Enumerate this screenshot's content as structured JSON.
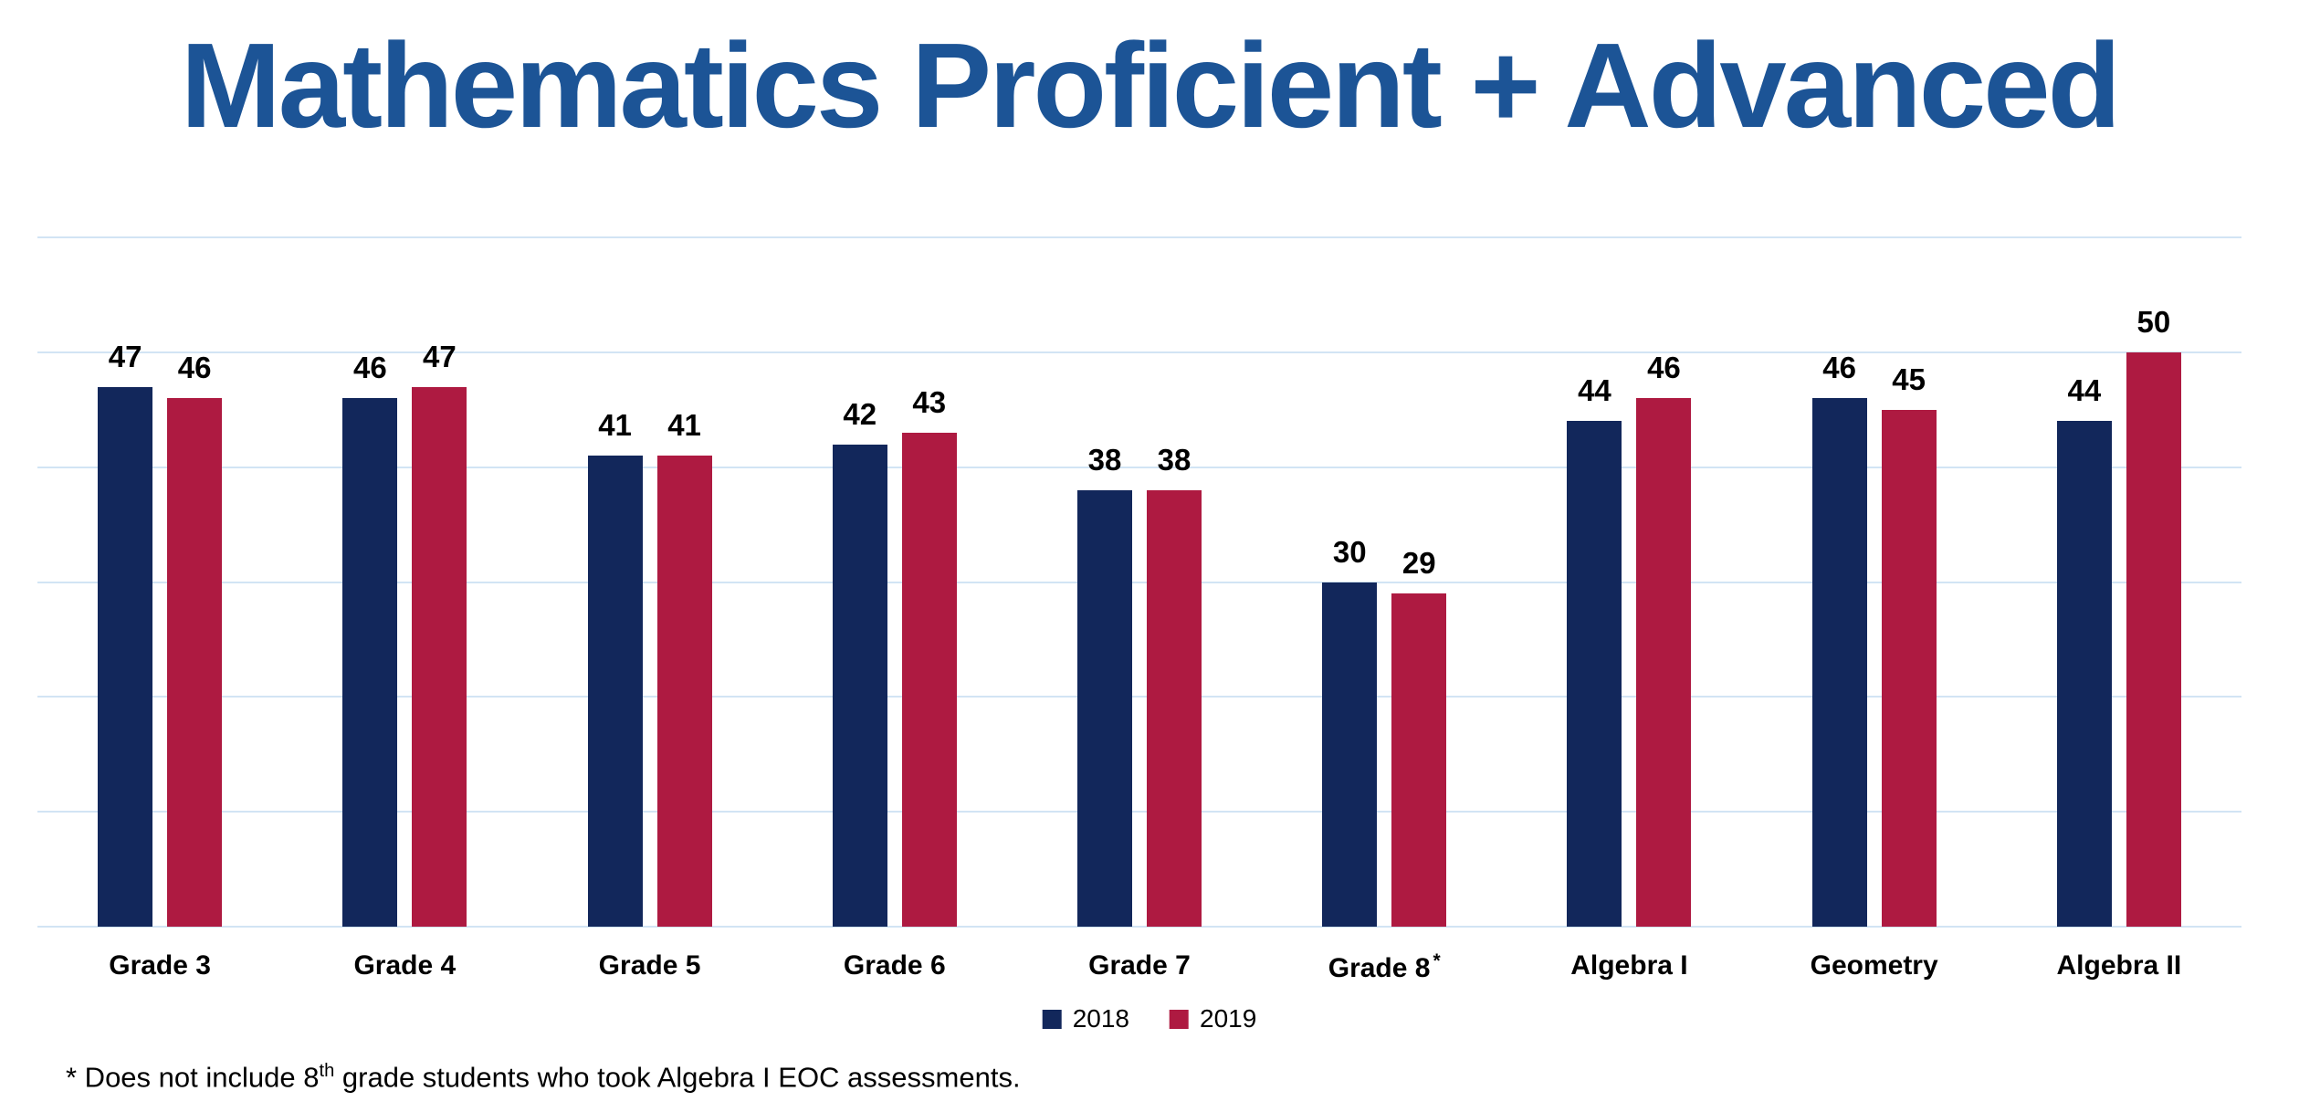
{
  "slide": {
    "footnote": {
      "prefix": "* Does not include 8",
      "sup": "th",
      "suffix": " grade students who took Algebra I EOC assessments."
    }
  },
  "colors": {
    "title": "#1C5496",
    "series_2018": "#12275B",
    "series_2019": "#AE1A41",
    "gridline": "#D2E4F4",
    "text": "#000000",
    "background": "#FFFFFF"
  },
  "chart_data": {
    "type": "bar",
    "title": "Mathematics Proficient + Advanced",
    "categories": [
      "Grade 3",
      "Grade 4",
      "Grade 5",
      "Grade 6",
      "Grade 7",
      "Grade 8*",
      "Algebra I",
      "Geometry",
      "Algebra II"
    ],
    "series": [
      {
        "name": "2018",
        "color": "#12275B",
        "values": [
          47,
          46,
          41,
          42,
          38,
          30,
          44,
          46,
          44
        ]
      },
      {
        "name": "2019",
        "color": "#AE1A41",
        "values": [
          46,
          47,
          41,
          43,
          38,
          29,
          46,
          45,
          50
        ]
      }
    ],
    "xlabel": "",
    "ylabel": "",
    "ylim": [
      0,
      60
    ],
    "gridline_step": 10,
    "grid": true,
    "y_tick_labels_shown": false,
    "data_labels": true,
    "legend_position": "bottom"
  }
}
